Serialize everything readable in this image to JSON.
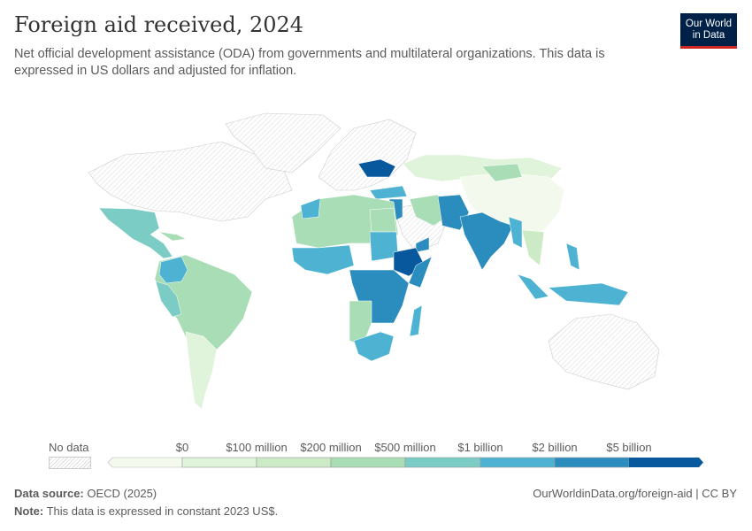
{
  "header": {
    "title": "Foreign aid received, 2024",
    "subtitle": "Net official development assistance (ODA) from governments and multilateral organizations. This data is expressed in US dollars and adjusted for inflation.",
    "logo": "Our World in Data"
  },
  "legend": {
    "no_data_label": "No data",
    "bins": [
      {
        "label": "$0",
        "color": "#f3f9ec"
      },
      {
        "label": "$100 million",
        "color": "#e0f3db"
      },
      {
        "label": "$200 million",
        "color": "#cceac5"
      },
      {
        "label": "$500 million",
        "color": "#a8ddb5"
      },
      {
        "label": "$1 billion",
        "color": "#7bccc4"
      },
      {
        "label": "$2 billion",
        "color": "#4eb3d3"
      },
      {
        "label": "$5 billion",
        "color": "#2b8cbe"
      },
      {
        "label": "",
        "color": "#08589e"
      }
    ]
  },
  "footer": {
    "source_label": "Data source:",
    "source": "OECD (2025)",
    "url": "OurWorldinData.org/foreign-aid | CC BY",
    "note_label": "Note:",
    "note": "This data is expressed in constant 2023 US$."
  }
}
